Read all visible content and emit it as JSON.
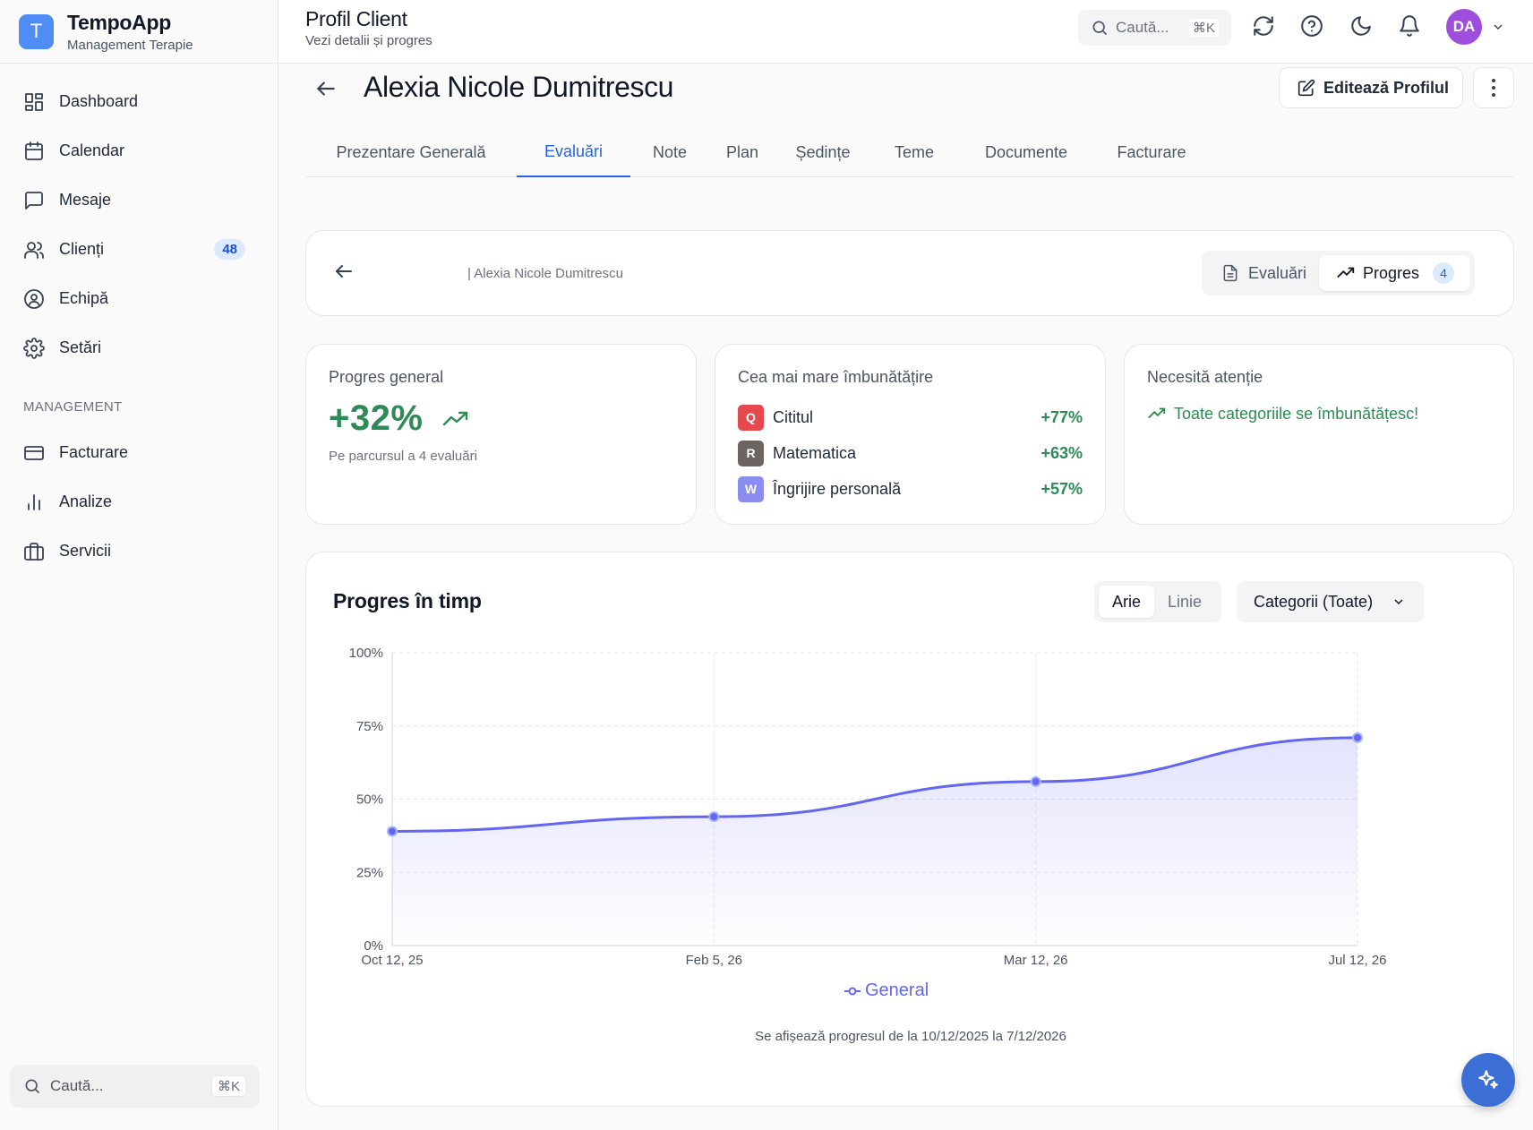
{
  "app": {
    "name": "TempoApp",
    "subtitle": "Management Terapie",
    "logo_letter": "T"
  },
  "sidebar": {
    "items": [
      {
        "label": "Dashboard",
        "icon": "dashboard-icon"
      },
      {
        "label": "Calendar",
        "icon": "calendar-icon"
      },
      {
        "label": "Mesaje",
        "icon": "message-icon"
      },
      {
        "label": "Clienți",
        "icon": "users-icon",
        "badge": "48"
      },
      {
        "label": "Echipă",
        "icon": "user-circle-icon"
      },
      {
        "label": "Setări",
        "icon": "gear-icon"
      }
    ],
    "section_label": "MANAGEMENT",
    "management_items": [
      {
        "label": "Facturare",
        "icon": "credit-card-icon"
      },
      {
        "label": "Analize",
        "icon": "bar-chart-icon"
      },
      {
        "label": "Servicii",
        "icon": "briefcase-icon"
      }
    ],
    "search": {
      "placeholder": "Caută...",
      "shortcut": "⌘K"
    }
  },
  "header": {
    "title": "Profil Client",
    "subtitle": "Vezi detalii și progres",
    "search": {
      "placeholder": "Caută...",
      "shortcut": "⌘K"
    },
    "avatar_initials": "DA"
  },
  "client": {
    "name": "Alexia Nicole Dumitrescu",
    "edit_label": "Editează Profilul"
  },
  "tabs": [
    {
      "label": "Prezentare Generală",
      "active": false
    },
    {
      "label": "Evaluări",
      "active": true
    },
    {
      "label": "Note",
      "active": false
    },
    {
      "label": "Plan",
      "active": false
    },
    {
      "label": "Ședințe",
      "active": false
    },
    {
      "label": "Teme",
      "active": false
    },
    {
      "label": "Documente",
      "active": false
    },
    {
      "label": "Facturare",
      "active": false
    }
  ],
  "subheader": {
    "breadcrumb": "| Alexia Nicole Dumitrescu",
    "evaluari_label": "Evaluări",
    "progres_label": "Progres",
    "progres_count": "4"
  },
  "stats": {
    "general": {
      "label": "Progres general",
      "value": "+32%",
      "sub": "Pe parcursul a 4 evaluări"
    },
    "improvement": {
      "label": "Cea mai mare îmbunătățire",
      "items": [
        {
          "letter": "Q",
          "name": "Cititul",
          "value": "+77%",
          "color": "#e5484d"
        },
        {
          "letter": "R",
          "name": "Matematica",
          "value": "+63%",
          "color": "#6b6460"
        },
        {
          "letter": "W",
          "name": "Îngrijire personală",
          "value": "+57%",
          "color": "#8b8cf0"
        }
      ]
    },
    "attention": {
      "label": "Necesită atenție",
      "message": "Toate categoriile se îmbunătățesc!"
    }
  },
  "chart_panel": {
    "title": "Progres în timp",
    "toggle": {
      "area": "Arie",
      "line": "Linie"
    },
    "category_select": "Categorii (Toate)",
    "range_text": "Se afișează progresul de la 10/12/2025 la 7/12/2026"
  },
  "chart_data": {
    "type": "area",
    "x": [
      "Oct 12, 25",
      "Feb 5, 26",
      "Mar 12, 26",
      "Jul 12, 26"
    ],
    "series": [
      {
        "name": "General",
        "values": [
          39,
          44,
          56,
          71
        ],
        "color": "#6366f1"
      }
    ],
    "yticks": [
      "100%",
      "75%",
      "50%",
      "25%",
      "0%"
    ],
    "ylim": [
      0,
      100
    ],
    "grid": true,
    "legend": "bottom"
  },
  "colors": {
    "accent": "#2563eb",
    "positive": "#2e8b57",
    "series": "#6366f1"
  }
}
